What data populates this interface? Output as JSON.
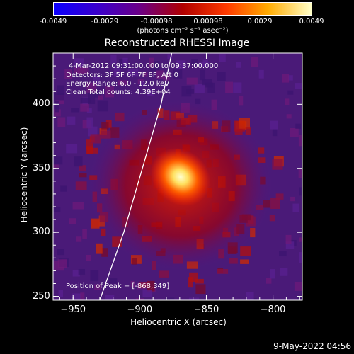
{
  "colorbar": {
    "ticks": [
      "-0.0049",
      "-0.0029",
      "-0.00098",
      "0.00098",
      "0.0029",
      "0.0049"
    ],
    "unit": "(photons cm⁻² s⁻¹ asec⁻²)"
  },
  "chart_data": {
    "type": "heatmap",
    "title": "Reconstructed RHESSI Image",
    "xlabel": "Heliocentric X (arcsec)",
    "ylabel": "Heliocentric Y (arcsec)",
    "xlim": [
      -965,
      -778
    ],
    "ylim": [
      247,
      440
    ],
    "xticks": [
      -950,
      -900,
      -850,
      -800
    ],
    "yticks": [
      250,
      300,
      350,
      400
    ],
    "zlim": [
      -0.0049,
      0.0049
    ],
    "peak": {
      "x": -868,
      "y": 349,
      "value": 0.0049
    },
    "limb_curve": [
      [
        -930,
        247
      ],
      [
        -912,
        300
      ],
      [
        -898,
        350
      ],
      [
        -884,
        400
      ],
      [
        -876,
        440
      ]
    ],
    "annotations": [
      "4-Mar-2012 09:31:00.000 to 09:37:00.000",
      "Detectors: 3F 5F 6F 7F 8F, Att 0",
      "Energy Range: 6.0 - 12.0 keV",
      "Clean     Total counts: 4.39E+04"
    ],
    "peak_label": "Position of Peak = [-868,349]"
  },
  "timestamp": "9-May-2022 04:56"
}
